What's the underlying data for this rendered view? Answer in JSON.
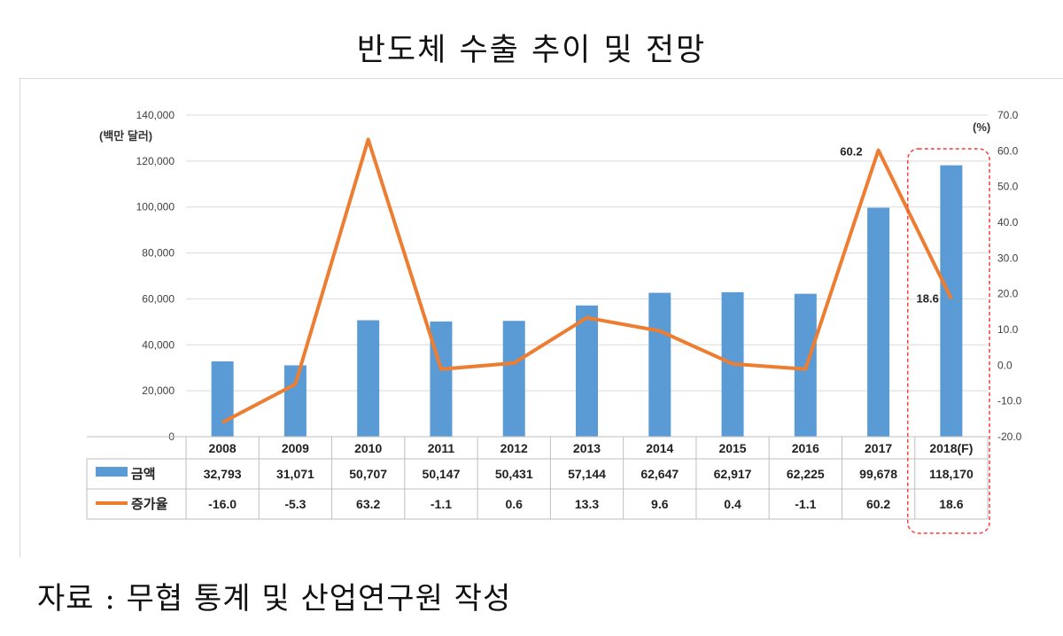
{
  "title": "반도체 수출 추이 및 전망",
  "source": "자료 : 무협 통계 및 산업연구원 작성",
  "colors": {
    "bar": "#5b9bd5",
    "line": "#ed7d31",
    "grid": "#d9d9d9",
    "highlight": "#ff3b3b"
  },
  "chart_data": {
    "type": "bar",
    "categories": [
      "2008",
      "2009",
      "2010",
      "2011",
      "2012",
      "2013",
      "2014",
      "2015",
      "2016",
      "2017",
      "2018(F)"
    ],
    "series": [
      {
        "name": "금액",
        "type": "bar",
        "axis": "left",
        "values": [
          32793,
          31071,
          50707,
          50147,
          50431,
          57144,
          62647,
          62917,
          62225,
          99678,
          118170
        ],
        "labels": [
          "32,793",
          "31,071",
          "50,707",
          "50,147",
          "50,431",
          "57,144",
          "62,647",
          "62,917",
          "62,225",
          "99,678",
          "118,170"
        ]
      },
      {
        "name": "증가율",
        "type": "line",
        "axis": "right",
        "values": [
          -16.0,
          -5.3,
          63.2,
          -1.1,
          0.6,
          13.3,
          9.6,
          0.4,
          -1.1,
          60.2,
          18.6
        ],
        "labels": [
          "-16.0",
          "-5.3",
          "63.2",
          "-1.1",
          "0.6",
          "13.3",
          "9.6",
          "0.4",
          "-1.1",
          "60.2",
          "18.6"
        ]
      }
    ],
    "ylabel_left": "(백만 달러)",
    "ylabel_right": "(%)",
    "ylim_left": [
      0,
      140000
    ],
    "ylim_right": [
      -20,
      70
    ],
    "yticks_left": [
      "0",
      "20,000",
      "40,000",
      "60,000",
      "80,000",
      "100,000",
      "120,000",
      "140,000"
    ],
    "yticks_right": [
      "-20.0",
      "-10.0",
      "0.0",
      "10.0",
      "20.0",
      "30.0",
      "40.0",
      "50.0",
      "60.0",
      "70.0"
    ],
    "annotations": [
      {
        "index": 9,
        "text": "60.2"
      },
      {
        "index": 10,
        "text": "18.6"
      }
    ],
    "highlighted_category": "2018(F)"
  }
}
